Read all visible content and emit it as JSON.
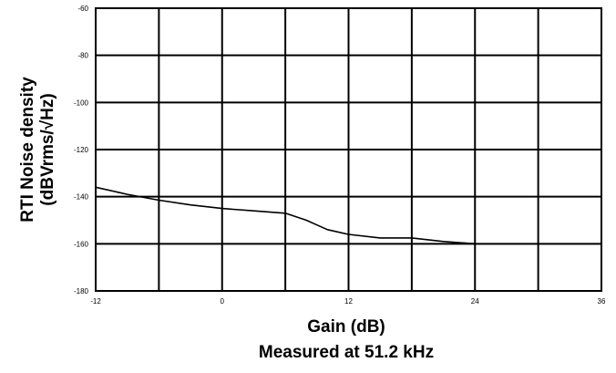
{
  "chart_data": {
    "type": "line",
    "title": "",
    "xlabel": "Gain (dB)",
    "subtitle": "Measured at 51.2 kHz",
    "ylabel_line1": "RTI Noise density",
    "ylabel_line2": "(dBVrms/√Hz)",
    "xlim": [
      -12,
      36
    ],
    "ylim": [
      -180,
      -60
    ],
    "x_ticks": [
      -12,
      0,
      12,
      24,
      36
    ],
    "x_tick_labels": [
      "-12",
      "0",
      "12",
      "24",
      "36"
    ],
    "y_ticks": [
      -60,
      -80,
      -100,
      -120,
      -140,
      -160,
      -180
    ],
    "y_tick_labels": [
      "-60",
      "-80",
      "-100",
      "-120",
      "-140",
      "-160",
      "-180"
    ],
    "x_grid_lines": [
      -12,
      -6,
      0,
      6,
      12,
      18,
      24,
      30,
      36
    ],
    "y_grid_lines": [
      -60,
      -80,
      -100,
      -120,
      -140,
      -160,
      -180
    ],
    "grid": true,
    "series": [
      {
        "color": "#000000",
        "points": [
          {
            "x": -12,
            "y": -136
          },
          {
            "x": -9,
            "y": -139
          },
          {
            "x": -6,
            "y": -141.5
          },
          {
            "x": -3,
            "y": -143.5
          },
          {
            "x": 0,
            "y": -145
          },
          {
            "x": 3,
            "y": -146
          },
          {
            "x": 6,
            "y": -147
          },
          {
            "x": 8,
            "y": -150
          },
          {
            "x": 9,
            "y": -152
          },
          {
            "x": 10,
            "y": -154
          },
          {
            "x": 12,
            "y": -156
          },
          {
            "x": 15,
            "y": -157.5
          },
          {
            "x": 18,
            "y": -157.5
          },
          {
            "x": 21,
            "y": -159
          },
          {
            "x": 24,
            "y": -160
          },
          {
            "x": 30,
            "y": -160
          },
          {
            "x": 36,
            "y": -160
          }
        ]
      }
    ]
  }
}
